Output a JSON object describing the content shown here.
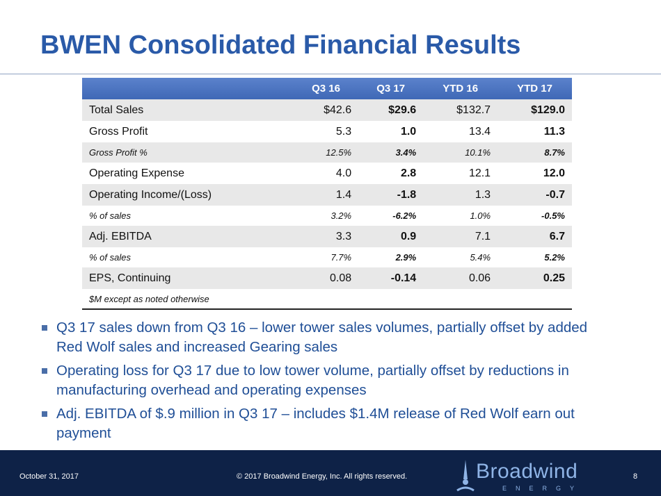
{
  "header": {
    "title": "BWEN Consolidated Financial Results"
  },
  "table": {
    "columns": [
      "Q3 16",
      "Q3 17",
      "YTD 16",
      "YTD 17"
    ],
    "rows": [
      [
        "Total Sales",
        "$42.6",
        "$29.6",
        "$132.7",
        "$129.0"
      ],
      [
        "Gross Profit",
        "5.3",
        "1.0",
        "13.4",
        "11.3"
      ],
      [
        "Gross Profit %",
        "12.5%",
        "3.4%",
        "10.1%",
        "8.7%"
      ],
      [
        "Operating Expense",
        "4.0",
        "2.8",
        "12.1",
        "12.0"
      ],
      [
        "Operating Income/(Loss)",
        "1.4",
        "-1.8",
        "1.3",
        "-0.7"
      ],
      [
        "% of sales",
        "3.2%",
        "-6.2%",
        "1.0%",
        "-0.5%"
      ],
      [
        "Adj. EBITDA",
        "3.3",
        "0.9",
        "7.1",
        "6.7"
      ],
      [
        "% of sales",
        "7.7%",
        "2.9%",
        "5.4%",
        "5.2%"
      ],
      [
        "EPS, Continuing",
        "0.08",
        "-0.14",
        "0.06",
        "0.25"
      ]
    ],
    "note": "$M except as noted otherwise"
  },
  "bullets": [
    "Q3 17 sales down from Q3 16 – lower tower sales volumes, partially offset by added Red Wolf sales and increased Gearing sales",
    "Operating loss for Q3 17 due to low tower volume, partially offset by reductions in manufacturing overhead and operating expenses",
    "Adj. EBITDA of $.9 million in Q3 17 – includes $1.4M release of Red Wolf earn out payment"
  ],
  "footer": {
    "date": "October 31, 2017",
    "copyright": "© 2017 Broadwind Energy, Inc. All rights reserved.",
    "page": "8",
    "logo": "Broadwind",
    "logo_sub": "ENERGY"
  }
}
